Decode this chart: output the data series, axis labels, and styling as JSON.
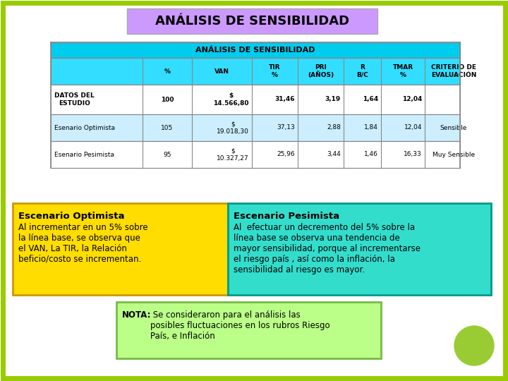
{
  "title": "ANÁLISIS DE SENSIBILIDAD",
  "title_bg": "#cc99ff",
  "page_bg": "#ffffff",
  "border_color": "#99cc00",
  "table_header_bg": "#00ccee",
  "table_subhdr_bg": "#33ddff",
  "table_row1_bg": "#ffffff",
  "table_row2_bg": "#cceeff",
  "table_row3_bg": "#ffffff",
  "table_border": "#888888",
  "table_title": "ANÁLISIS DE SENSIBILIDAD",
  "col_labels": [
    "",
    "%",
    "VAN",
    "TIR\n%",
    "PRI\n(AÑOS)",
    "R\nB/C",
    "TMAR\n%",
    "CRITERIO DE\nEVALUACIÓN"
  ],
  "rows": [
    [
      "DATOS DEL\nESTUDIO",
      "100",
      "$\n14.566,80",
      "31,46",
      "3,19",
      "1,64",
      "12,04",
      ""
    ],
    [
      "Esenario Optimista",
      "105",
      "$\n19.018,30",
      "37,13",
      "2,88",
      "1,84",
      "12,04",
      "Sensible"
    ],
    [
      "Esenario Pesimista",
      "95",
      "$\n10.327,27",
      "25,96",
      "3,44",
      "1,46",
      "16,33",
      "Muy Sensible"
    ]
  ],
  "row_bold": [
    true,
    false,
    false
  ],
  "optimista_title": "Escenario Optimista",
  "optimista_text": "Al incrementar en un 5% sobre\nla línea base, se observa que\nel VAN, La TIR, la Relación\nbeficio/costo se incrementan.",
  "optimista_bg": "#ffdd00",
  "optimista_border": "#cc9900",
  "pesimista_title": "Escenario Pesimista",
  "pesimista_text": "Al  efectuar un decremento del 5% sobre la\nlínea base se observa una tendencia de\nmayor sensibilidad, porque al incrementarse\nel riesgo país , así como la inflación, la\nsensibilidad al riesgo es mayor.",
  "pesimista_bg": "#33ddcc",
  "pesimista_border": "#009988",
  "nota_bold": "NOTA:",
  "nota_rest": " Se consideraron para el análisis las\nposibles fluctuaciones en los rubros Riesgo\nPaís, e Inflación",
  "nota_bg": "#bbff88",
  "nota_border": "#77bb44",
  "circle_color": "#99cc33"
}
